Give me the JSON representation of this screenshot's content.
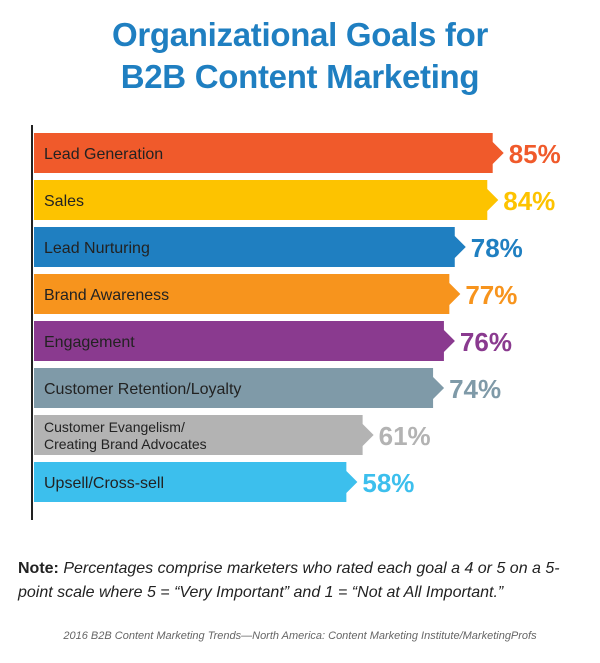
{
  "title_line1": "Organizational Goals for",
  "title_line2": "B2B Content Marketing",
  "note_label": "Note:",
  "note_text": "Percentages comprise marketers who rated each goal a 4 or 5 on a 5-point scale where 5 = “Very Important” and 1 = “Not at All Important.”",
  "source": "2016 B2B Content Marketing Trends—North America: Content Marketing Institute/MarketingProfs",
  "chart_data": {
    "type": "bar",
    "orientation": "horizontal",
    "title": "Organizational Goals for B2B Content Marketing",
    "categories": [
      "Lead Generation",
      "Sales",
      "Lead Nurturing",
      "Brand Awareness",
      "Engagement",
      "Customer Retention/Loyalty",
      "Customer Evangelism/\nCreating Brand Advocates",
      "Upsell/Cross-sell"
    ],
    "values": [
      85,
      84,
      78,
      77,
      76,
      74,
      61,
      58
    ],
    "value_labels": [
      "85%",
      "84%",
      "78%",
      "77%",
      "76%",
      "74%",
      "61%",
      "58%"
    ],
    "unit": "%",
    "colors": [
      "#f05a2b",
      "#fdc300",
      "#1f7fc1",
      "#f7941d",
      "#8a3a8f",
      "#7f9aa8",
      "#b3b3b3",
      "#3cbfed"
    ],
    "grid": false,
    "legend": "none"
  }
}
